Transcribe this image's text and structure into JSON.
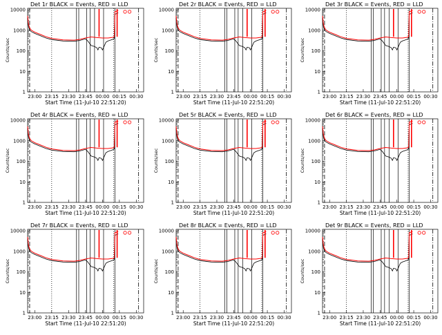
{
  "colors": {
    "events": "#000000",
    "lld": "#ff0000",
    "background": "#ffffff"
  },
  "chart_data": [
    {
      "type": "line",
      "title": "Det 1r  BLACK = Events, RED = LLD",
      "xlabel": "Start Time (11-Jul-10 22:51:20)",
      "ylabel": "Counts/sec",
      "xtick_labels": [
        "23:00",
        "23:15",
        "23:30",
        "23:45",
        "00:00",
        "00:15",
        "00:30"
      ],
      "ytick_labels": [
        "1",
        "10",
        "100",
        "1000",
        "10000"
      ]
    },
    {
      "type": "line",
      "title": "Det 2r  BLACK = Events, RED = LLD",
      "xlabel": "Start Time (11-Jul-10 22:51:20)",
      "ylabel": "Counts/sec",
      "xtick_labels": [
        "23:00",
        "23:15",
        "23:30",
        "23:45",
        "00:00",
        "00:15",
        "00:30"
      ],
      "ytick_labels": [
        "1",
        "10",
        "100",
        "1000",
        "10000"
      ]
    },
    {
      "type": "line",
      "title": "Det 3r  BLACK = Events, RED = LLD",
      "xlabel": "Start Time (11-Jul-10 22:51:20)",
      "ylabel": "Counts/sec",
      "xtick_labels": [
        "23:00",
        "23:15",
        "23:30",
        "23:45",
        "00:00",
        "00:15",
        "00:30"
      ],
      "ytick_labels": [
        "1",
        "10",
        "100",
        "1000",
        "10000"
      ]
    },
    {
      "type": "line",
      "title": "Det 4r  BLACK = Events, RED = LLD",
      "xlabel": "Start Time (11-Jul-10 22:51:20)",
      "ylabel": "Counts/sec",
      "xtick_labels": [
        "23:00",
        "23:15",
        "23:30",
        "23:45",
        "00:00",
        "00:15",
        "00:30"
      ],
      "ytick_labels": [
        "1",
        "10",
        "100",
        "1000",
        "10000"
      ]
    },
    {
      "type": "line",
      "title": "Det 5r  BLACK = Events, RED = LLD",
      "xlabel": "Start Time (11-Jul-10 22:51:20)",
      "ylabel": "Counts/sec",
      "xtick_labels": [
        "23:00",
        "23:15",
        "23:30",
        "23:45",
        "00:00",
        "00:15",
        "00:30"
      ],
      "ytick_labels": [
        "1",
        "10",
        "100",
        "1000",
        "10000"
      ]
    },
    {
      "type": "line",
      "title": "Det 6r  BLACK = Events, RED = LLD",
      "xlabel": "Start Time (11-Jul-10 22:51:20)",
      "ylabel": "Counts/sec",
      "xtick_labels": [
        "23:00",
        "23:15",
        "23:30",
        "23:45",
        "00:00",
        "00:15",
        "00:30"
      ],
      "ytick_labels": [
        "1",
        "10",
        "100",
        "1000",
        "10000"
      ]
    },
    {
      "type": "line",
      "title": "Det 7r  BLACK = Events, RED = LLD",
      "xlabel": "Start Time (11-Jul-10 22:51:20)",
      "ylabel": "Counts/sec",
      "xtick_labels": [
        "23:00",
        "23:15",
        "23:30",
        "23:45",
        "00:00",
        "00:15",
        "00:30"
      ],
      "ytick_labels": [
        "1",
        "10",
        "100",
        "1000",
        "10000"
      ]
    },
    {
      "type": "line",
      "title": "Det 8r  BLACK = Events, RED = LLD",
      "xlabel": "Start Time (11-Jul-10 22:51:20)",
      "ylabel": "Counts/sec",
      "xtick_labels": [
        "23:00",
        "23:15",
        "23:30",
        "23:45",
        "00:00",
        "00:15",
        "00:30"
      ],
      "ytick_labels": [
        "1",
        "10",
        "100",
        "1000",
        "10000"
      ]
    },
    {
      "type": "line",
      "title": "Det 9r  BLACK = Events, RED = LLD",
      "xlabel": "Start Time (11-Jul-10 22:51:20)",
      "ylabel": "Counts/sec",
      "xtick_labels": [
        "23:00",
        "23:15",
        "23:30",
        "23:45",
        "00:00",
        "00:15",
        "00:30"
      ],
      "ytick_labels": [
        "1",
        "10",
        "100",
        "1000",
        "10000"
      ]
    }
  ]
}
